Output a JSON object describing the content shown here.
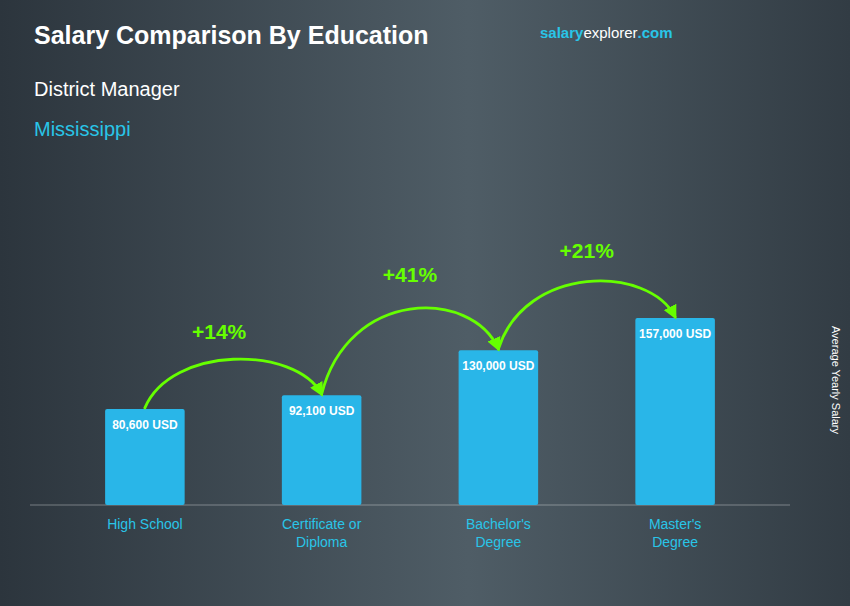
{
  "chart_data": {
    "type": "bar",
    "title": "Salary Comparison By Education",
    "subtitle": [
      "District Manager",
      "Mississippi"
    ],
    "brand": [
      "salary",
      "explorer",
      ".com"
    ],
    "y_label": "Average Yearly Salary",
    "categories": [
      "High School",
      "Certificate or\nDiploma",
      "Bachelor's\nDegree",
      "Master's\nDegree"
    ],
    "values": [
      80600,
      92100,
      130000,
      157000
    ],
    "value_labels": [
      "80,600 USD",
      "92,100 USD",
      "130,000 USD",
      "157,000 USD"
    ],
    "data_labels": true,
    "annotations": [
      "+14%",
      "+41%",
      "+21%"
    ],
    "color": "#29b6e8",
    "ylim": [
      0,
      210000
    ],
    "tick_labels": "x",
    "grid": false
  }
}
